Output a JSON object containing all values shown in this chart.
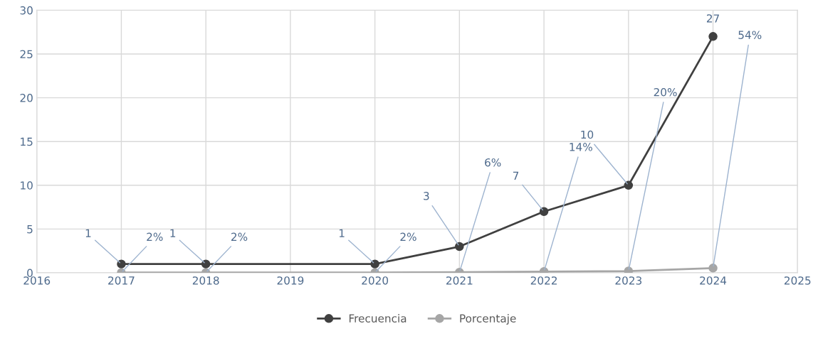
{
  "chart_data": {
    "type": "line",
    "x": [
      2017,
      2018,
      2020,
      2021,
      2022,
      2023,
      2024
    ],
    "series": [
      {
        "name": "Frecuencia",
        "color": "#404040",
        "values": [
          1,
          1,
          1,
          3,
          7,
          10,
          27
        ],
        "value_labels": [
          "1",
          "1",
          "1",
          "3",
          "7",
          "10",
          "27"
        ]
      },
      {
        "name": "Porcentaje",
        "color": "#a6a6a6",
        "values": [
          0.02,
          0.02,
          0.02,
          0.06,
          0.14,
          0.2,
          0.54
        ],
        "value_labels": [
          "2%",
          "2%",
          "2%",
          "6%",
          "14%",
          "20%",
          "54%"
        ]
      }
    ],
    "xlim": [
      2016,
      2025
    ],
    "xticks": [
      2016,
      2017,
      2018,
      2019,
      2020,
      2021,
      2022,
      2023,
      2024,
      2025
    ],
    "ylim": [
      0,
      30
    ],
    "yticks": [
      0,
      5,
      10,
      15,
      20,
      25,
      30
    ],
    "grid": true,
    "legend": "bottom",
    "marker": "circle",
    "line_style": "solid"
  }
}
